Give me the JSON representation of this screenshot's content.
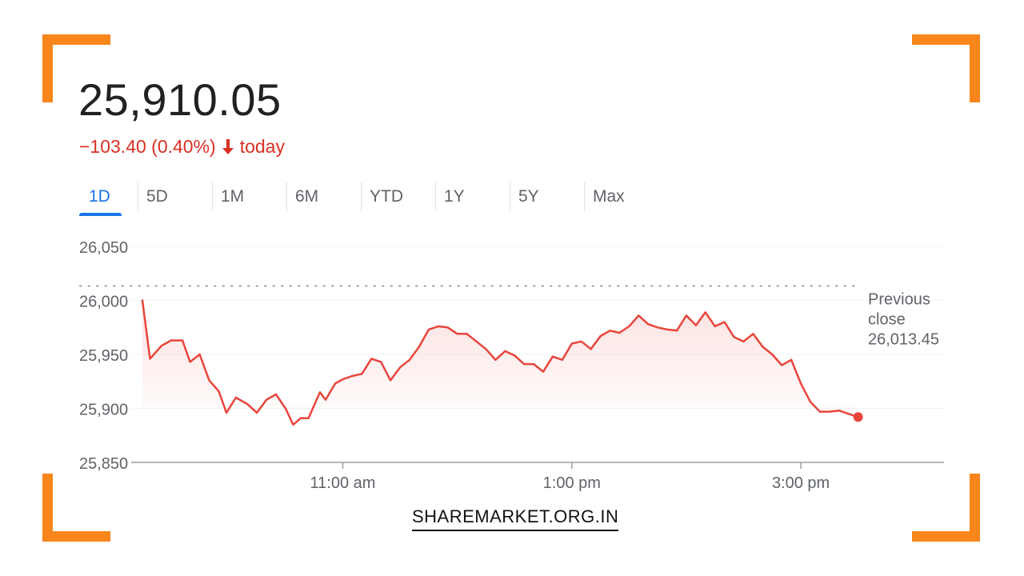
{
  "quote": {
    "price": "25,910.05",
    "change": "−103.40 (0.40%)",
    "direction_icon": "arrow-down-icon",
    "period": "today"
  },
  "tabs": [
    {
      "label": "1D",
      "active": true
    },
    {
      "label": "5D",
      "active": false
    },
    {
      "label": "1M",
      "active": false
    },
    {
      "label": "6M",
      "active": false
    },
    {
      "label": "YTD",
      "active": false
    },
    {
      "label": "1Y",
      "active": false
    },
    {
      "label": "5Y",
      "active": false
    },
    {
      "label": "Max",
      "active": false
    }
  ],
  "brand": "SHAREMARKET.ORG.IN",
  "colors": {
    "line": "#e8453c",
    "negative": "#d93025",
    "active_tab": "#1a73e8",
    "corner_accent": "#f7861b"
  },
  "chart_data": {
    "type": "line",
    "title": "",
    "xlabel": "",
    "ylabel": "",
    "ylim": [
      25850,
      26050
    ],
    "y_ticks": [
      26050,
      26000,
      25950,
      25900,
      25850
    ],
    "y_tick_labels": [
      "26,050",
      "26,000",
      "25,950",
      "25,900",
      "25,850"
    ],
    "xlim": [
      "09:15",
      "16:15"
    ],
    "x_ticks": [
      "11:00",
      "13:00",
      "15:00"
    ],
    "x_tick_labels": [
      "11:00 am",
      "1:00 pm",
      "3:00 pm"
    ],
    "grid": true,
    "previous_close": {
      "value": 26013.45,
      "label_lines": [
        "Previous",
        "close",
        "26,013.45"
      ]
    },
    "series": [
      {
        "x": [
          "09:15",
          "09:19",
          "09:25",
          "09:30",
          "09:36",
          "09:40",
          "09:45",
          "09:50",
          "09:55",
          "09:59",
          "10:04",
          "10:10",
          "10:15",
          "10:20",
          "10:25",
          "10:30",
          "10:34",
          "10:38",
          "10:42",
          "10:48",
          "10:51",
          "10:56",
          "11:00",
          "11:05",
          "11:10",
          "11:15",
          "11:20",
          "11:25",
          "11:30",
          "11:35",
          "11:40",
          "11:45",
          "11:50",
          "11:55",
          "12:00",
          "12:05",
          "12:10",
          "12:15",
          "12:20",
          "12:25",
          "12:30",
          "12:35",
          "12:40",
          "12:45",
          "12:50",
          "12:55",
          "13:00",
          "13:05",
          "13:10",
          "13:15",
          "13:20",
          "13:25",
          "13:30",
          "13:35",
          "13:40",
          "13:45",
          "13:50",
          "13:55",
          "14:00",
          "14:05",
          "14:10",
          "14:15",
          "14:20",
          "14:25",
          "14:30",
          "14:35",
          "14:40",
          "14:45",
          "14:50",
          "14:55",
          "15:00",
          "15:05",
          "15:10",
          "15:15",
          "15:20",
          "15:25",
          "15:30"
        ],
        "y": [
          26000,
          25946,
          25958,
          25963,
          25963,
          25943,
          25950,
          25926,
          25916,
          25896,
          25910,
          25904,
          25896,
          25908,
          25913,
          25900,
          25885,
          25891,
          25891,
          25915,
          25908,
          25923,
          25927,
          25930,
          25932,
          25946,
          25943,
          25926,
          25938,
          25945,
          25957,
          25973,
          25976,
          25975,
          25969,
          25969,
          25962,
          25955,
          25945,
          25953,
          25949,
          25941,
          25941,
          25934,
          25948,
          25945,
          25960,
          25962,
          25955,
          25967,
          25972,
          25970,
          25976,
          25986,
          25978,
          25975,
          25973,
          25972,
          25986,
          25977,
          25989,
          25976,
          25980,
          25966,
          25962,
          25969,
          25957,
          25950,
          25940,
          25945,
          25923,
          25906,
          25897,
          25897,
          25898,
          25895,
          25892
        ]
      }
    ]
  }
}
